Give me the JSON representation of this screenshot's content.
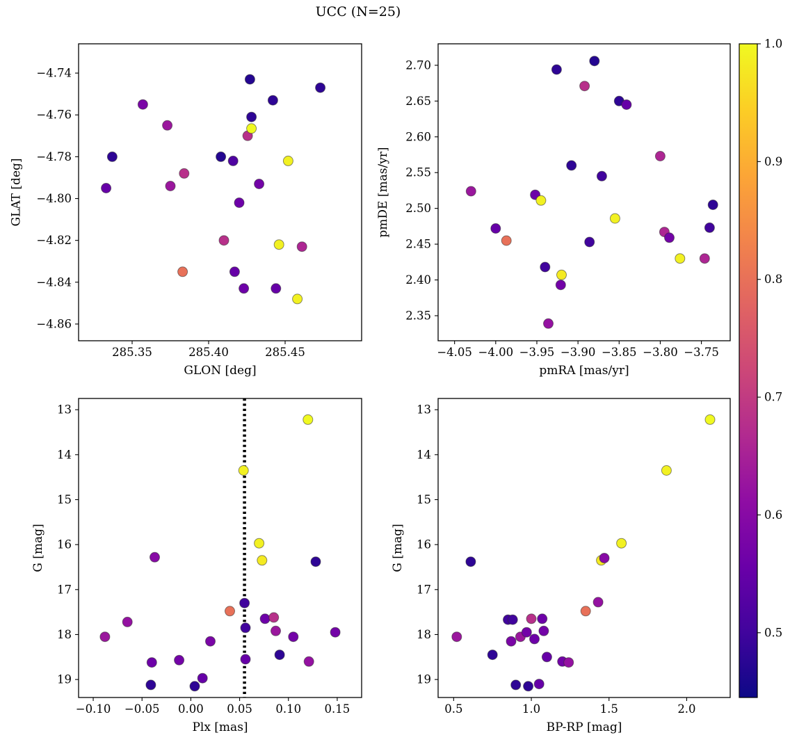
{
  "title": "UCC (N=25)",
  "colorbar": {
    "colormap": "plasma",
    "vmin": 0.445,
    "vmax": 1.0,
    "ticks": [
      1.0,
      0.9,
      0.8,
      0.7,
      0.6,
      0.5
    ],
    "tick_labels": [
      "1.0",
      "0.9",
      "0.8",
      "0.7",
      "0.6",
      "0.5"
    ],
    "gradient_stops": [
      "#0d0887",
      "#41049d",
      "#6a00a8",
      "#8f0da4",
      "#b12a90",
      "#cc4778",
      "#e16462",
      "#f2844b",
      "#fca636",
      "#fcce25",
      "#f0f921"
    ]
  },
  "chart_data": [
    {
      "name": "glon-glat",
      "type": "scatter",
      "xlabel": "GLON [deg]",
      "ylabel": "GLAT [deg]",
      "xlim": [
        285.315,
        285.5
      ],
      "ylim": [
        -4.868,
        -4.726
      ],
      "xticks": {
        "values": [
          285.35,
          285.4,
          285.45
        ],
        "labels": [
          "285.35",
          "285.40",
          "285.45"
        ]
      },
      "yticks": {
        "values": [
          -4.74,
          -4.76,
          -4.78,
          -4.8,
          -4.82,
          -4.84,
          -4.86
        ],
        "labels": [
          "−4.74",
          "−4.76",
          "−4.78",
          "−4.80",
          "−4.82",
          "−4.84",
          "−4.86"
        ]
      },
      "x": [
        285.337,
        285.333,
        285.357,
        285.373,
        285.375,
        285.384,
        285.383,
        285.408,
        285.41,
        285.416,
        285.417,
        285.42,
        285.423,
        285.427,
        285.428,
        285.4255,
        285.428,
        285.433,
        285.442,
        285.444,
        285.446,
        285.452,
        285.458,
        285.461,
        285.473
      ],
      "y": [
        -4.78,
        -4.795,
        -4.755,
        -4.765,
        -4.794,
        -4.788,
        -4.835,
        -4.78,
        -4.82,
        -4.782,
        -4.835,
        -4.802,
        -4.843,
        -4.743,
        -4.761,
        -4.77,
        -4.7665,
        -4.793,
        -4.753,
        -4.843,
        -4.822,
        -4.782,
        -4.848,
        -4.823,
        -4.747
      ],
      "c": [
        0.48,
        0.55,
        0.58,
        0.63,
        0.63,
        0.68,
        0.8,
        0.47,
        0.68,
        0.52,
        0.55,
        0.56,
        0.56,
        0.47,
        0.48,
        0.68,
        1.0,
        0.57,
        0.48,
        0.55,
        0.99,
        0.99,
        0.99,
        0.66,
        0.48
      ]
    },
    {
      "name": "pmra-pmde",
      "type": "scatter",
      "xlabel": "pmRA [mas/yr]",
      "ylabel": "pmDE [mas/yr]",
      "xlim": [
        -4.07,
        -3.715
      ],
      "ylim": [
        2.315,
        2.73
      ],
      "xticks": {
        "values": [
          -4.05,
          -4.0,
          -3.95,
          -3.9,
          -3.85,
          -3.8,
          -3.75
        ],
        "labels": [
          "−4.05",
          "−4.00",
          "−3.95",
          "−3.90",
          "−3.85",
          "−3.80",
          "−3.75"
        ]
      },
      "yticks": {
        "values": [
          2.35,
          2.4,
          2.45,
          2.5,
          2.55,
          2.6,
          2.65,
          2.7
        ],
        "labels": [
          "2.35",
          "2.40",
          "2.45",
          "2.50",
          "2.55",
          "2.60",
          "2.65",
          "2.70"
        ]
      },
      "x": [
        -4.03,
        -4.0,
        -3.987,
        -3.952,
        -3.945,
        -3.94,
        -3.936,
        -3.926,
        -3.921,
        -3.92,
        -3.908,
        -3.892,
        -3.886,
        -3.88,
        -3.871,
        -3.855,
        -3.85,
        -3.841,
        -3.8,
        -3.795,
        -3.789,
        -3.776,
        -3.746,
        -3.74,
        -3.736
      ],
      "y": [
        2.524,
        2.472,
        2.455,
        2.519,
        2.511,
        2.418,
        2.339,
        2.694,
        2.393,
        2.407,
        2.56,
        2.671,
        2.453,
        2.706,
        2.545,
        2.486,
        2.65,
        2.645,
        2.573,
        2.467,
        2.459,
        2.43,
        2.43,
        2.473,
        2.505
      ],
      "c": [
        0.63,
        0.55,
        0.8,
        0.56,
        0.99,
        0.5,
        0.62,
        0.48,
        0.57,
        0.98,
        0.48,
        0.68,
        0.5,
        0.47,
        0.5,
        0.99,
        0.48,
        0.55,
        0.66,
        0.66,
        0.57,
        0.99,
        0.66,
        0.5,
        0.48
      ]
    },
    {
      "name": "plx-g",
      "type": "scatter",
      "xlabel": "Plx [mas]",
      "ylabel": "G [mag]",
      "xlim": [
        -0.115,
        0.175
      ],
      "ylim": [
        19.4,
        12.75
      ],
      "y_inverted": true,
      "vline": {
        "x": 0.055,
        "style": "dotted",
        "color": "#000000",
        "linewidth": 4.5
      },
      "xticks": {
        "values": [
          -0.1,
          -0.05,
          0.0,
          0.05,
          0.1,
          0.15
        ],
        "labels": [
          "−0.10",
          "−0.05",
          "0.00",
          "0.05",
          "0.10",
          "0.15"
        ]
      },
      "yticks": {
        "values": [
          13,
          14,
          15,
          16,
          17,
          18,
          19
        ],
        "labels": [
          "13",
          "14",
          "15",
          "16",
          "17",
          "18",
          "19"
        ]
      },
      "x": [
        -0.088,
        -0.065,
        -0.041,
        -0.04,
        -0.037,
        -0.012,
        0.004,
        0.012,
        0.02,
        0.04,
        0.054,
        0.055,
        0.056,
        0.056,
        0.07,
        0.073,
        0.076,
        0.085,
        0.087,
        0.091,
        0.105,
        0.12,
        0.121,
        0.128,
        0.148
      ],
      "y": [
        18.05,
        17.72,
        19.12,
        18.62,
        16.28,
        18.57,
        19.15,
        18.97,
        18.15,
        17.48,
        14.35,
        17.3,
        17.85,
        18.55,
        15.97,
        16.35,
        17.65,
        17.62,
        17.92,
        18.45,
        18.05,
        13.22,
        18.6,
        16.38,
        17.95
      ],
      "c": [
        0.63,
        0.62,
        0.48,
        0.56,
        0.6,
        0.57,
        0.48,
        0.55,
        0.58,
        0.8,
        0.99,
        0.5,
        0.5,
        0.55,
        0.99,
        0.98,
        0.56,
        0.68,
        0.63,
        0.48,
        0.57,
        1.0,
        0.62,
        0.48,
        0.57
      ]
    },
    {
      "name": "bprp-g",
      "type": "scatter",
      "xlabel": "BP-RP [mag]",
      "ylabel": "G [mag]",
      "xlim": [
        0.4,
        2.28
      ],
      "ylim": [
        19.4,
        12.75
      ],
      "y_inverted": true,
      "xticks": {
        "values": [
          0.5,
          1.0,
          1.5,
          2.0
        ],
        "labels": [
          "0.5",
          "1.0",
          "1.5",
          "2.0"
        ]
      },
      "yticks": {
        "values": [
          13,
          14,
          15,
          16,
          17,
          18,
          19
        ],
        "labels": [
          "13",
          "14",
          "15",
          "16",
          "17",
          "18",
          "19"
        ]
      },
      "x": [
        0.52,
        0.61,
        0.75,
        0.85,
        0.87,
        0.88,
        0.9,
        0.93,
        0.97,
        0.98,
        1.0,
        1.02,
        1.05,
        1.07,
        1.08,
        1.1,
        1.2,
        1.24,
        1.35,
        1.43,
        1.45,
        1.47,
        1.58,
        1.87,
        2.15
      ],
      "y": [
        18.05,
        16.38,
        18.45,
        17.67,
        18.15,
        17.67,
        19.12,
        18.05,
        17.95,
        19.15,
        17.65,
        18.1,
        19.1,
        17.65,
        17.92,
        18.5,
        18.6,
        18.62,
        17.48,
        17.28,
        16.35,
        16.3,
        15.97,
        14.35,
        13.22
      ],
      "c": [
        0.63,
        0.48,
        0.48,
        0.5,
        0.58,
        0.5,
        0.48,
        0.63,
        0.57,
        0.48,
        0.68,
        0.56,
        0.55,
        0.56,
        0.57,
        0.55,
        0.57,
        0.62,
        0.8,
        0.62,
        0.98,
        0.6,
        0.99,
        0.99,
        1.0
      ]
    }
  ]
}
